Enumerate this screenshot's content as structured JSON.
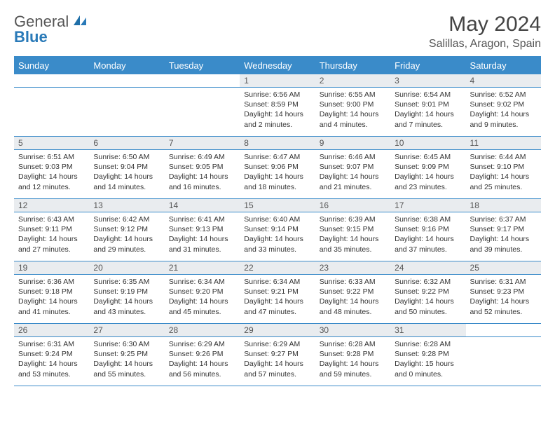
{
  "brand": {
    "general": "General",
    "blue": "Blue"
  },
  "title": "May 2024",
  "location": "Salillas, Aragon, Spain",
  "header_bg": "#3a8bc9",
  "daynum_bg": "#e9ecef",
  "border_color": "#3a8bc9",
  "day_headers": [
    "Sunday",
    "Monday",
    "Tuesday",
    "Wednesday",
    "Thursday",
    "Friday",
    "Saturday"
  ],
  "weeks": [
    [
      null,
      null,
      null,
      {
        "n": "1",
        "sr": "6:56 AM",
        "ss": "8:59 PM",
        "dl": "14 hours and 2 minutes."
      },
      {
        "n": "2",
        "sr": "6:55 AM",
        "ss": "9:00 PM",
        "dl": "14 hours and 4 minutes."
      },
      {
        "n": "3",
        "sr": "6:54 AM",
        "ss": "9:01 PM",
        "dl": "14 hours and 7 minutes."
      },
      {
        "n": "4",
        "sr": "6:52 AM",
        "ss": "9:02 PM",
        "dl": "14 hours and 9 minutes."
      }
    ],
    [
      {
        "n": "5",
        "sr": "6:51 AM",
        "ss": "9:03 PM",
        "dl": "14 hours and 12 minutes."
      },
      {
        "n": "6",
        "sr": "6:50 AM",
        "ss": "9:04 PM",
        "dl": "14 hours and 14 minutes."
      },
      {
        "n": "7",
        "sr": "6:49 AM",
        "ss": "9:05 PM",
        "dl": "14 hours and 16 minutes."
      },
      {
        "n": "8",
        "sr": "6:47 AM",
        "ss": "9:06 PM",
        "dl": "14 hours and 18 minutes."
      },
      {
        "n": "9",
        "sr": "6:46 AM",
        "ss": "9:07 PM",
        "dl": "14 hours and 21 minutes."
      },
      {
        "n": "10",
        "sr": "6:45 AM",
        "ss": "9:09 PM",
        "dl": "14 hours and 23 minutes."
      },
      {
        "n": "11",
        "sr": "6:44 AM",
        "ss": "9:10 PM",
        "dl": "14 hours and 25 minutes."
      }
    ],
    [
      {
        "n": "12",
        "sr": "6:43 AM",
        "ss": "9:11 PM",
        "dl": "14 hours and 27 minutes."
      },
      {
        "n": "13",
        "sr": "6:42 AM",
        "ss": "9:12 PM",
        "dl": "14 hours and 29 minutes."
      },
      {
        "n": "14",
        "sr": "6:41 AM",
        "ss": "9:13 PM",
        "dl": "14 hours and 31 minutes."
      },
      {
        "n": "15",
        "sr": "6:40 AM",
        "ss": "9:14 PM",
        "dl": "14 hours and 33 minutes."
      },
      {
        "n": "16",
        "sr": "6:39 AM",
        "ss": "9:15 PM",
        "dl": "14 hours and 35 minutes."
      },
      {
        "n": "17",
        "sr": "6:38 AM",
        "ss": "9:16 PM",
        "dl": "14 hours and 37 minutes."
      },
      {
        "n": "18",
        "sr": "6:37 AM",
        "ss": "9:17 PM",
        "dl": "14 hours and 39 minutes."
      }
    ],
    [
      {
        "n": "19",
        "sr": "6:36 AM",
        "ss": "9:18 PM",
        "dl": "14 hours and 41 minutes."
      },
      {
        "n": "20",
        "sr": "6:35 AM",
        "ss": "9:19 PM",
        "dl": "14 hours and 43 minutes."
      },
      {
        "n": "21",
        "sr": "6:34 AM",
        "ss": "9:20 PM",
        "dl": "14 hours and 45 minutes."
      },
      {
        "n": "22",
        "sr": "6:34 AM",
        "ss": "9:21 PM",
        "dl": "14 hours and 47 minutes."
      },
      {
        "n": "23",
        "sr": "6:33 AM",
        "ss": "9:22 PM",
        "dl": "14 hours and 48 minutes."
      },
      {
        "n": "24",
        "sr": "6:32 AM",
        "ss": "9:22 PM",
        "dl": "14 hours and 50 minutes."
      },
      {
        "n": "25",
        "sr": "6:31 AM",
        "ss": "9:23 PM",
        "dl": "14 hours and 52 minutes."
      }
    ],
    [
      {
        "n": "26",
        "sr": "6:31 AM",
        "ss": "9:24 PM",
        "dl": "14 hours and 53 minutes."
      },
      {
        "n": "27",
        "sr": "6:30 AM",
        "ss": "9:25 PM",
        "dl": "14 hours and 55 minutes."
      },
      {
        "n": "28",
        "sr": "6:29 AM",
        "ss": "9:26 PM",
        "dl": "14 hours and 56 minutes."
      },
      {
        "n": "29",
        "sr": "6:29 AM",
        "ss": "9:27 PM",
        "dl": "14 hours and 57 minutes."
      },
      {
        "n": "30",
        "sr": "6:28 AM",
        "ss": "9:28 PM",
        "dl": "14 hours and 59 minutes."
      },
      {
        "n": "31",
        "sr": "6:28 AM",
        "ss": "9:28 PM",
        "dl": "15 hours and 0 minutes."
      },
      null
    ]
  ]
}
